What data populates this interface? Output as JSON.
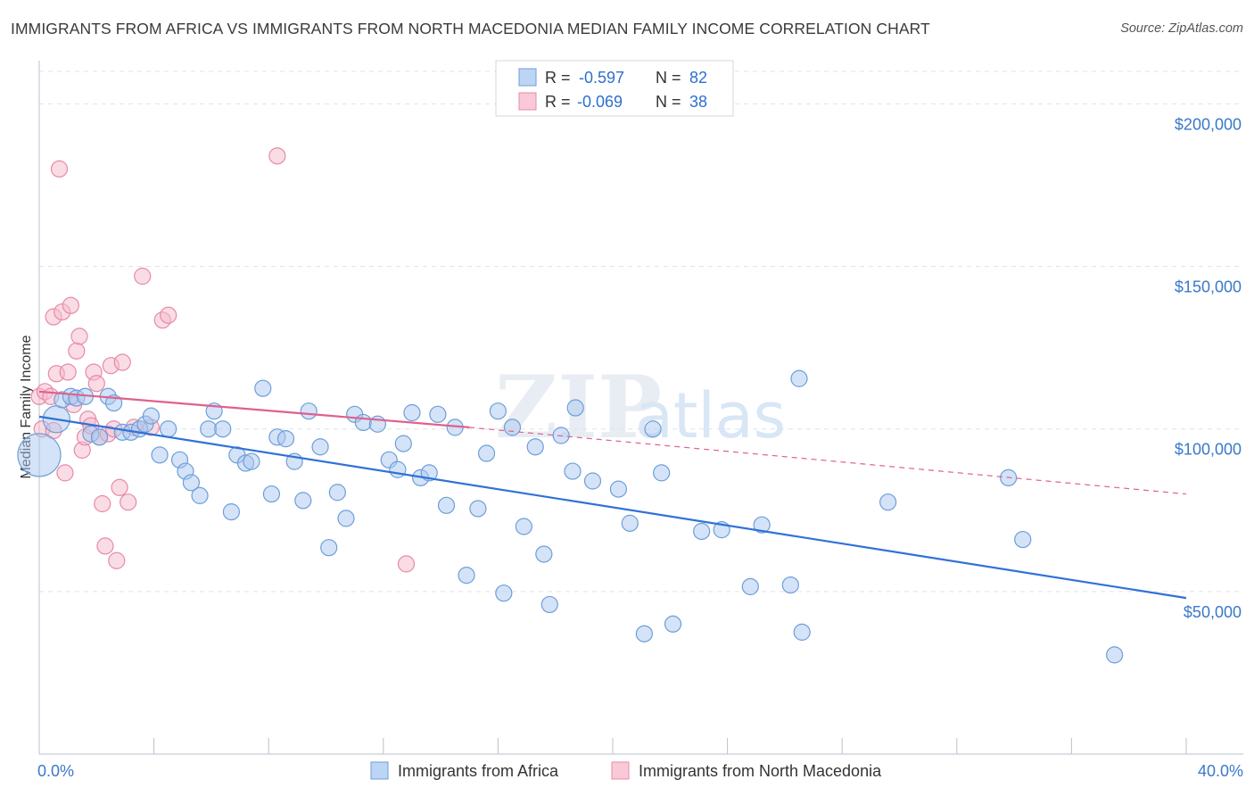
{
  "title": "IMMIGRANTS FROM AFRICA VS IMMIGRANTS FROM NORTH MACEDONIA MEDIAN FAMILY INCOME CORRELATION CHART",
  "source": "Source: ZipAtlas.com",
  "watermark": {
    "zip": "ZIP",
    "atlas": "atlas"
  },
  "colors": {
    "africa_fill": "#a9c8ef",
    "africa_stroke": "#6d9ed8",
    "africa_line": "#2f72d6",
    "macedonia_fill": "#f6b9cc",
    "macedonia_stroke": "#e68aa8",
    "macedonia_line": "#e0608d",
    "grid": "#dde3ea",
    "axis_label": "#3a78c9"
  },
  "legend": {
    "rows": [
      {
        "r_label": "R =",
        "r_value": "-0.597",
        "n_label": "N =",
        "n_value": "82"
      },
      {
        "r_label": "R =",
        "r_value": "-0.069",
        "n_label": "N =",
        "n_value": "38"
      }
    ]
  },
  "chart_data": {
    "type": "scatter",
    "xlabel": "",
    "ylabel": "Median Family Income",
    "xlim": [
      0,
      40
    ],
    "ylim": [
      0,
      210000
    ],
    "x_tick_labels": [
      "0.0%",
      "40.0%"
    ],
    "y_ticks": [
      50000,
      100000,
      150000,
      200000
    ],
    "y_tick_labels": [
      "$50,000",
      "$100,000",
      "$150,000",
      "$200,000"
    ],
    "grid": "horizontal dashed",
    "legend_position": "top-center",
    "series": [
      {
        "name": "Immigrants from Africa",
        "trend": {
          "x": [
            0,
            40
          ],
          "y": [
            103800,
            48000
          ]
        },
        "points": [
          [
            0.0,
            92000
          ],
          [
            0.6,
            103000
          ],
          [
            0.8,
            109000
          ],
          [
            1.1,
            110000
          ],
          [
            1.3,
            109500
          ],
          [
            1.6,
            110000
          ],
          [
            1.8,
            98500
          ],
          [
            2.1,
            97500
          ],
          [
            2.4,
            110000
          ],
          [
            2.6,
            108000
          ],
          [
            2.9,
            99000
          ],
          [
            3.2,
            99000
          ],
          [
            3.5,
            100000
          ],
          [
            3.7,
            101500
          ],
          [
            3.9,
            104000
          ],
          [
            4.2,
            92000
          ],
          [
            4.5,
            100000
          ],
          [
            4.9,
            90500
          ],
          [
            5.1,
            87000
          ],
          [
            5.3,
            83500
          ],
          [
            5.6,
            79500
          ],
          [
            5.9,
            100000
          ],
          [
            6.1,
            105500
          ],
          [
            6.4,
            100000
          ],
          [
            6.7,
            74500
          ],
          [
            6.9,
            92000
          ],
          [
            7.2,
            89500
          ],
          [
            7.4,
            90000
          ],
          [
            7.8,
            112500
          ],
          [
            8.1,
            80000
          ],
          [
            8.3,
            97500
          ],
          [
            8.6,
            97000
          ],
          [
            8.9,
            90000
          ],
          [
            9.2,
            78000
          ],
          [
            9.4,
            105500
          ],
          [
            9.8,
            94500
          ],
          [
            10.1,
            63500
          ],
          [
            10.4,
            80500
          ],
          [
            10.7,
            72500
          ],
          [
            11.0,
            104500
          ],
          [
            11.3,
            102000
          ],
          [
            11.8,
            101500
          ],
          [
            12.2,
            90500
          ],
          [
            12.5,
            87500
          ],
          [
            12.7,
            95500
          ],
          [
            13.0,
            105000
          ],
          [
            13.3,
            85000
          ],
          [
            13.6,
            86500
          ],
          [
            13.9,
            104500
          ],
          [
            14.2,
            76500
          ],
          [
            14.5,
            100500
          ],
          [
            14.9,
            55000
          ],
          [
            15.3,
            75500
          ],
          [
            15.6,
            92500
          ],
          [
            16.0,
            105500
          ],
          [
            16.2,
            49500
          ],
          [
            16.5,
            100500
          ],
          [
            16.9,
            70000
          ],
          [
            17.3,
            94500
          ],
          [
            17.6,
            61500
          ],
          [
            17.8,
            46000
          ],
          [
            18.2,
            98000
          ],
          [
            18.6,
            87000
          ],
          [
            18.7,
            106500
          ],
          [
            19.3,
            84000
          ],
          [
            20.2,
            81500
          ],
          [
            20.6,
            71000
          ],
          [
            21.1,
            37000
          ],
          [
            21.4,
            100000
          ],
          [
            21.7,
            86500
          ],
          [
            22.1,
            40000
          ],
          [
            23.1,
            68500
          ],
          [
            23.8,
            69000
          ],
          [
            24.8,
            51500
          ],
          [
            25.2,
            70500
          ],
          [
            26.2,
            52000
          ],
          [
            26.5,
            115500
          ],
          [
            26.6,
            37500
          ],
          [
            29.6,
            77500
          ],
          [
            33.8,
            85000
          ],
          [
            34.3,
            66000
          ],
          [
            37.5,
            30500
          ]
        ]
      },
      {
        "name": "Immigrants from North Macedonia",
        "trend": {
          "x": [
            0,
            15
          ],
          "y": [
            111500,
            100500
          ]
        },
        "trend_extended": {
          "x": [
            15,
            40
          ],
          "y": [
            100500,
            80000
          ]
        },
        "points": [
          [
            0.0,
            110000
          ],
          [
            0.1,
            100000
          ],
          [
            0.2,
            111500
          ],
          [
            0.4,
            110000
          ],
          [
            0.5,
            99500
          ],
          [
            0.5,
            134500
          ],
          [
            0.6,
            117000
          ],
          [
            0.7,
            180000
          ],
          [
            0.8,
            136000
          ],
          [
            0.9,
            86500
          ],
          [
            1.0,
            117500
          ],
          [
            1.1,
            138000
          ],
          [
            1.2,
            107500
          ],
          [
            1.3,
            124000
          ],
          [
            1.4,
            128500
          ],
          [
            1.5,
            93500
          ],
          [
            1.6,
            97500
          ],
          [
            1.7,
            103000
          ],
          [
            1.8,
            101000
          ],
          [
            1.9,
            117500
          ],
          [
            2.0,
            114000
          ],
          [
            2.1,
            97500
          ],
          [
            2.2,
            77000
          ],
          [
            2.3,
            64000
          ],
          [
            2.4,
            98500
          ],
          [
            2.5,
            119500
          ],
          [
            2.6,
            100000
          ],
          [
            2.7,
            59500
          ],
          [
            2.8,
            82000
          ],
          [
            2.9,
            120500
          ],
          [
            3.1,
            77500
          ],
          [
            3.3,
            100500
          ],
          [
            3.6,
            147000
          ],
          [
            3.9,
            100500
          ],
          [
            4.3,
            133500
          ],
          [
            4.5,
            135000
          ],
          [
            8.3,
            184000
          ],
          [
            12.8,
            58500
          ]
        ]
      }
    ]
  },
  "bottom_legend": [
    {
      "label": "Immigrants from Africa"
    },
    {
      "label": "Immigrants from North Macedonia"
    }
  ]
}
